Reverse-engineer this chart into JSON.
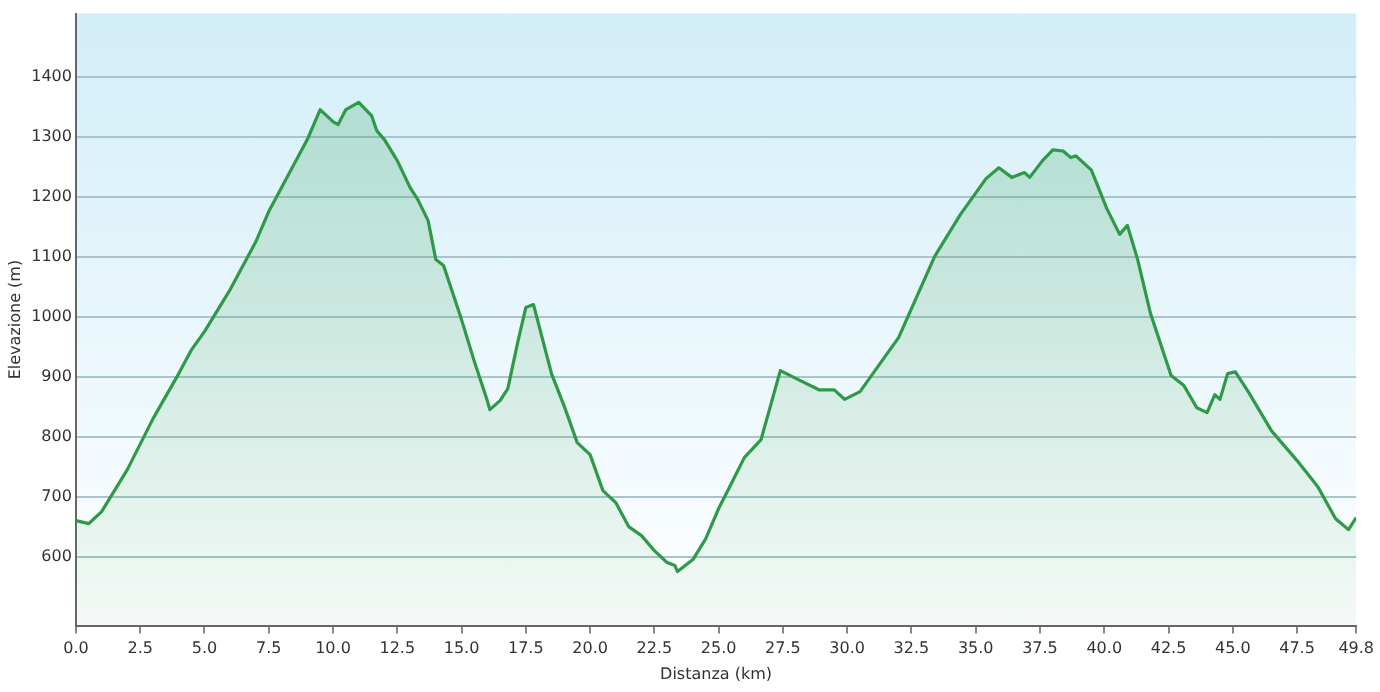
{
  "chart_data": {
    "type": "area",
    "xlabel": "Distanza (km)",
    "ylabel": "Elevazione (m)",
    "xlim": [
      0,
      49.8
    ],
    "ylim": [
      485,
      1505
    ],
    "xticks": [
      {
        "value": 0,
        "label": "0.0"
      },
      2.5,
      {
        "value": 5,
        "label": "5.0"
      },
      7.5,
      {
        "value": 10,
        "label": "10.0"
      },
      12.5,
      {
        "value": 15,
        "label": "15.0"
      },
      17.5,
      {
        "value": 20,
        "label": "20.0"
      },
      22.5,
      {
        "value": 25,
        "label": "25.0"
      },
      27.5,
      {
        "value": 30,
        "label": "30.0"
      },
      32.5,
      {
        "value": 35,
        "label": "35.0"
      },
      37.5,
      {
        "value": 40,
        "label": "40.0"
      },
      42.5,
      {
        "value": 45,
        "label": "45.0"
      },
      47.5,
      49.8
    ],
    "yticks": [
      600,
      700,
      800,
      900,
      1000,
      1100,
      1200,
      1300,
      1400
    ],
    "grid": "y",
    "legend": false,
    "marker": "none",
    "line_style": "solid",
    "series": [
      {
        "color": "#2e9a48",
        "x": [
          0,
          0.5,
          1,
          2,
          3,
          4,
          4.5,
          5,
          6,
          7,
          7.5,
          8,
          9,
          9.5,
          10,
          10.2,
          10.5,
          11,
          11.5,
          11.7,
          12,
          12.5,
          13,
          13.3,
          13.7,
          14,
          14.3,
          15,
          15.5,
          16,
          16.1,
          16.5,
          16.8,
          17.2,
          17.5,
          17.8,
          18.5,
          19,
          19.5,
          20,
          20.5,
          21,
          21.5,
          22,
          22.5,
          23,
          23.3,
          23.4,
          24,
          24.5,
          25,
          25.3,
          26,
          26.65,
          27.4,
          28.1,
          28.9,
          29.5,
          29.9,
          30.5,
          31,
          32,
          33.4,
          34.4,
          35.4,
          35.9,
          36.4,
          36.9,
          37.1,
          37.6,
          38,
          38.4,
          38.7,
          38.9,
          39.5,
          40.1,
          40.6,
          40.9,
          41.3,
          41.8,
          42.6,
          43.1,
          43.6,
          44,
          44.3,
          44.5,
          44.8,
          45.1,
          45.6,
          46.5,
          47.5,
          48.3,
          49,
          49.5,
          49.8
        ],
        "values": [
          660,
          655,
          675,
          745,
          830,
          905,
          945,
          975,
          1045,
          1125,
          1175,
          1215,
          1295,
          1345,
          1325,
          1320,
          1345,
          1357,
          1335,
          1310,
          1295,
          1260,
          1215,
          1195,
          1160,
          1095,
          1085,
          995,
          925,
          860,
          845,
          860,
          880,
          960,
          1015,
          1020,
          905,
          850,
          790,
          770,
          710,
          690,
          650,
          635,
          610,
          590,
          585,
          575,
          595,
          630,
          680,
          705,
          765,
          795,
          910,
          895,
          878,
          878,
          862,
          875,
          905,
          965,
          1100,
          1170,
          1230,
          1248,
          1232,
          1240,
          1232,
          1260,
          1278,
          1276,
          1265,
          1268,
          1244,
          1180,
          1137,
          1152,
          1095,
          1005,
          902,
          885,
          848,
          840,
          870,
          862,
          905,
          908,
          875,
          810,
          760,
          717,
          663,
          645,
          665
        ]
      }
    ]
  }
}
